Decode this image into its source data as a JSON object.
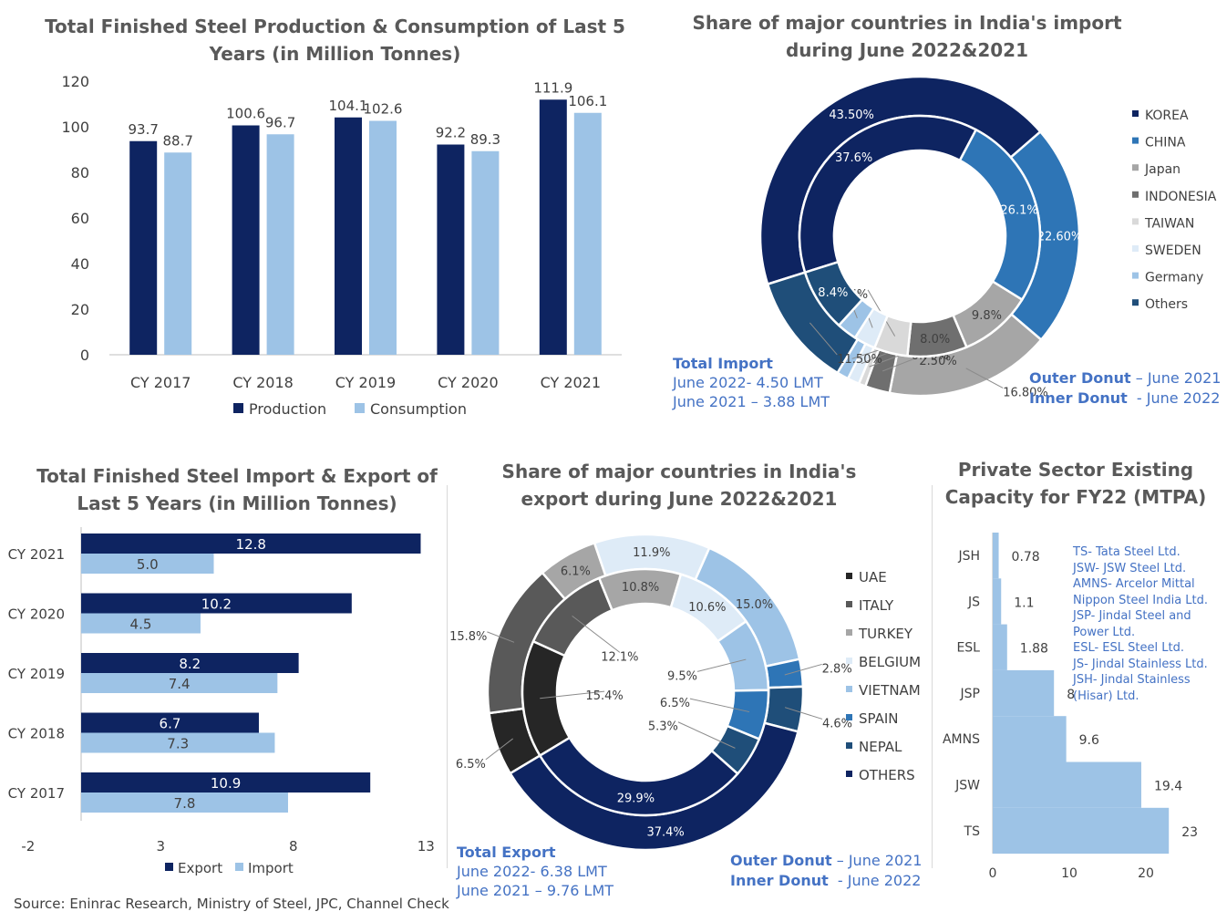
{
  "colors": {
    "dark_navy": "#0E2461",
    "light_blue": "#9DC3E6",
    "accent_blue": "#4472C4",
    "text_gray": "#595959"
  },
  "source_note": "Source: Eninrac Research, Ministry of Steel, JPC, Channel Check",
  "chart_data": [
    {
      "id": "production_consumption",
      "type": "bar",
      "title": "Total Finished Steel Production & Consumption of Last 5 Years (in Million Tonnes)",
      "categories": [
        "CY 2017",
        "CY 2018",
        "CY 2019",
        "CY 2020",
        "CY 2021"
      ],
      "series": [
        {
          "name": "Production",
          "color": "#0E2461",
          "values": [
            93.7,
            100.6,
            104.1,
            92.2,
            111.9
          ]
        },
        {
          "name": "Consumption",
          "color": "#9DC3E6",
          "values": [
            88.7,
            96.7,
            102.6,
            89.3,
            106.1
          ]
        }
      ],
      "ylim": [
        0,
        120
      ],
      "yticks": [
        "0",
        "20",
        "40",
        "60",
        "80",
        "100",
        "120"
      ],
      "legend": "bottom"
    },
    {
      "id": "import_share",
      "type": "pie",
      "title": "Share of major countries in India's import during June 2022&2021",
      "categories": [
        "KOREA",
        "CHINA",
        "Japan",
        "INDONESIA",
        "TAIWAN",
        "SWEDEN",
        "Germany",
        "Others"
      ],
      "colors": [
        "#0E2461",
        "#2E75B6",
        "#A6A6A6",
        "#6F6F6F",
        "#D9D9D9",
        "#DEEBF7",
        "#9DC3E6",
        "#1F4E79"
      ],
      "series": [
        {
          "name": "Outer Donut – June 2021",
          "values": [
            43.5,
            22.6,
            16.8,
            2.5,
            0.7,
            1.2,
            1.2,
            11.5
          ],
          "labels": [
            "43.50%",
            "22.60%",
            "16.80%",
            "2.50%",
            "0.70%",
            "1.20%",
            "1.20%",
            "11.50%"
          ]
        },
        {
          "name": "Inner Donut - June 2022",
          "values": [
            37.6,
            26.1,
            9.8,
            8.0,
            4.5,
            2.9,
            2.7,
            8.4
          ],
          "labels": [
            "37.6%",
            "26.1%",
            "9.8%",
            "8.0%",
            "4.5%",
            "2.9%",
            "2.7%",
            "8.4%"
          ]
        }
      ],
      "legend": "right",
      "notes": {
        "total_label": "Total Import",
        "line1": "June 2022- 4.50 LMT",
        "line2": "June 2021 – 3.88 LMT",
        "outer_key": "Outer Donut",
        "outer_text": " – June 2021",
        "inner_key": "Inner Donut",
        "inner_text": "  - June 2022"
      }
    },
    {
      "id": "import_export",
      "type": "bar",
      "orientation": "horizontal",
      "title": "Total Finished Steel Import & Export of Last 5 Years (in Million Tonnes)",
      "categories": [
        "CY 2021",
        "CY 2020",
        "CY 2019",
        "CY 2018",
        "CY 2017"
      ],
      "series": [
        {
          "name": "Export",
          "color": "#0E2461",
          "values": [
            12.8,
            10.2,
            8.2,
            6.7,
            10.9
          ]
        },
        {
          "name": "Import",
          "color": "#9DC3E6",
          "values": [
            5.0,
            4.5,
            7.4,
            7.3,
            7.8
          ]
        }
      ],
      "xlim": [
        -2,
        13
      ],
      "xticks": [
        "-2",
        "3",
        "8",
        "13"
      ],
      "legend": "bottom"
    },
    {
      "id": "export_share",
      "type": "pie",
      "title": "Share of major countries in India's export during June 2022&2021",
      "categories": [
        "UAE",
        "ITALY",
        "TURKEY",
        "BELGIUM",
        "VIETNAM",
        "SPAIN",
        "NEPAL",
        "OTHERS"
      ],
      "colors": [
        "#262626",
        "#595959",
        "#A6A6A6",
        "#DEEBF7",
        "#9DC3E6",
        "#2E75B6",
        "#1F4E79",
        "#0E2461"
      ],
      "series": [
        {
          "name": "Outer Donut – June 2021",
          "values": [
            6.5,
            15.8,
            6.1,
            11.9,
            15.0,
            2.8,
            4.6,
            37.4
          ],
          "labels": [
            "6.5%",
            "15.8%",
            "6.1%",
            "11.9%",
            "15.0%",
            "2.8%",
            "4.6%",
            "37.4%"
          ]
        },
        {
          "name": "Inner Donut - June 2022",
          "values": [
            15.4,
            12.1,
            10.8,
            10.6,
            9.5,
            6.5,
            5.3,
            29.9
          ],
          "labels": [
            "15.4%",
            "12.1%",
            "10.8%",
            "10.6%",
            "9.5%",
            "6.5%",
            "5.3%",
            "29.9%"
          ]
        }
      ],
      "legend": "right",
      "notes": {
        "total_label": "Total Export",
        "line1": "June 2022- 6.38 LMT",
        "line2": "June 2021 – 9.76 LMT",
        "outer_key": "Outer Donut",
        "outer_text": " – June 2021",
        "inner_key": "Inner Donut",
        "inner_text": "  - June 2022"
      }
    },
    {
      "id": "private_capacity",
      "type": "bar",
      "orientation": "horizontal",
      "title": "Private Sector Existing Capacity for FY22 (MTPA)",
      "categories": [
        "JSH",
        "JS",
        "ESL",
        "JSP",
        "AMNS",
        "JSW",
        "TS"
      ],
      "values": [
        0.78,
        1.1,
        1.88,
        8,
        9.6,
        19.4,
        23
      ],
      "labels": [
        "0.78",
        "1.1",
        "1.88",
        "8",
        "9.6",
        "19.4",
        "23"
      ],
      "color": "#9DC3E6",
      "xlim": [
        0,
        25
      ],
      "xticks": [
        "0",
        "10",
        "20"
      ],
      "abbreviations": [
        "TS- Tata Steel Ltd.",
        "JSW- JSW Steel Ltd.",
        "AMNS- Arcelor Mittal",
        "Nippon Steel India Ltd.",
        "JSP- Jindal Steel and",
        "Power Ltd.",
        "ESL- ESL Steel Ltd.",
        "JS- Jindal Stainless Ltd.",
        "JSH- Jindal Stainless",
        "(Hisar) Ltd."
      ]
    }
  ]
}
